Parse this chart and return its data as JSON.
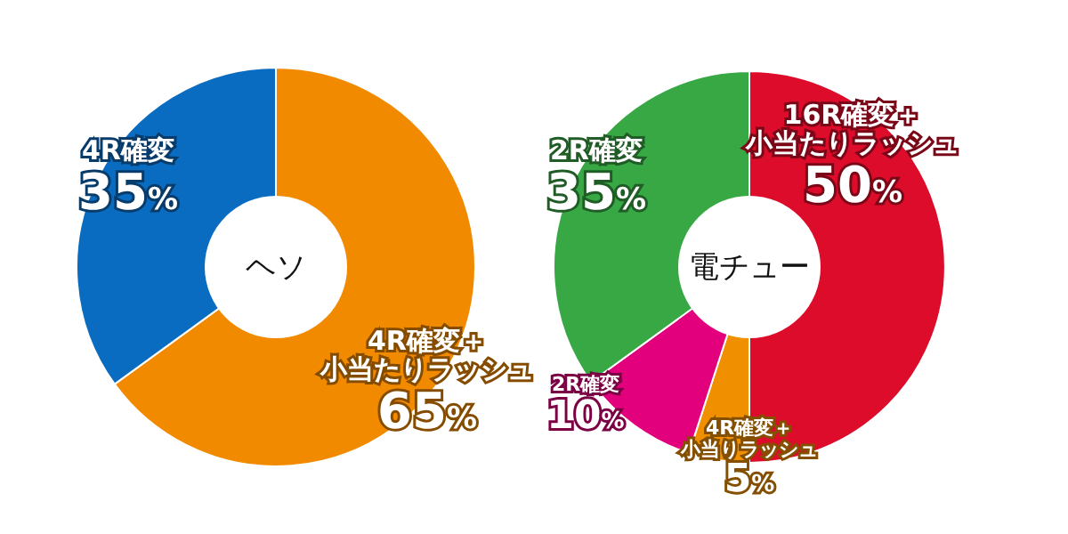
{
  "chart_data": [
    {
      "type": "donut",
      "title": "ヘソ",
      "categories": [
        "4R確変＋小当たりラッシュ",
        "4R確変"
      ],
      "values": [
        65,
        35
      ],
      "value_labels": [
        "65%",
        "35%"
      ],
      "colors": [
        "#f28a00",
        "#0a6cc0"
      ]
    },
    {
      "type": "donut",
      "title": "電チュー",
      "categories": [
        "16R確変＋小当たりラッシュ",
        "4R確変＋小当りラッシュ",
        "2R確変",
        "2R確変"
      ],
      "values": [
        50,
        5,
        10,
        35
      ],
      "value_labels": [
        "50%",
        "5%",
        "10%",
        "35%"
      ],
      "colors": [
        "#dc0c2a",
        "#f09000",
        "#e2007c",
        "#38a845"
      ]
    }
  ]
}
